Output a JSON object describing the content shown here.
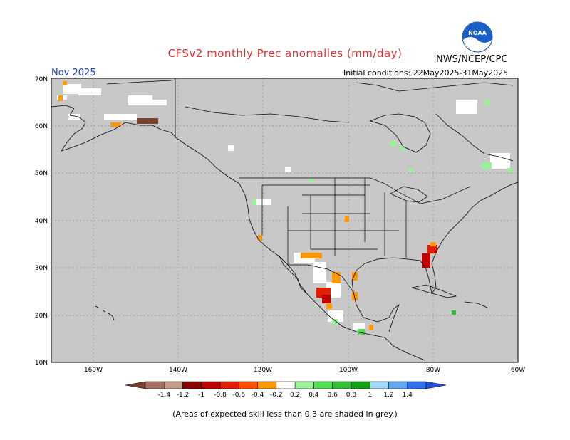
{
  "title": "CFSv2 monthly Prec anomalies (mm/day)",
  "agency": "NWS/NCEP/CPC",
  "logo_text": "NOAA",
  "valid_month": "Nov 2025",
  "initial_conditions": "Initial conditions: 22May2025-31May2025",
  "lat_labels": [
    "70N",
    "60N",
    "50N",
    "40N",
    "30N",
    "20N",
    "10N"
  ],
  "lon_labels": [
    "160W",
    "140W",
    "120W",
    "100W",
    "80W",
    "60W"
  ],
  "colorbar": {
    "labels": [
      "-1.4",
      "-1.2",
      "-1",
      "-0.8",
      "-0.6",
      "-0.4",
      "-0.2",
      "0.2",
      "0.4",
      "0.6",
      "0.8",
      "1",
      "1.2",
      "1.4"
    ],
    "colors": [
      "#7a4030",
      "#a87060",
      "#c49a88",
      "#8b0000",
      "#c00000",
      "#e02000",
      "#ff5000",
      "#ff9800",
      "#ffffff",
      "#98f098",
      "#50e050",
      "#30c030",
      "#10a010",
      "#a0d8f8",
      "#60a8f0",
      "#3070f0",
      "#2050d8"
    ],
    "neutral_color": "#ffffff"
  },
  "mask_color": "#c8c8c8",
  "note": "(Areas of expected skill less than 0.3 are shaded in grey.)"
}
